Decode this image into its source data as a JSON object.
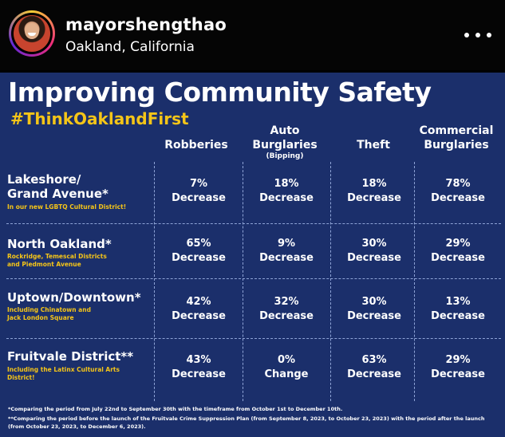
{
  "post": {
    "username": "mayorshengthao",
    "location": "Oakland, California"
  },
  "infographic": {
    "title": "Improving Community Safety",
    "hashtag": "#ThinkOaklandFirst",
    "columns": [
      {
        "line1": "Robberies",
        "line2": "",
        "sub": ""
      },
      {
        "line1": "Auto",
        "line2": "Burglaries",
        "sub": "(Bipping)"
      },
      {
        "line1": "Theft",
        "line2": "",
        "sub": ""
      },
      {
        "line1": "Commercial",
        "line2": "Burglaries",
        "sub": ""
      }
    ],
    "rows": [
      {
        "name_line1": "Lakeshore/",
        "name_line2": "Grand Avenue*",
        "sub_line1": "In our new LGBTQ Cultural District!",
        "sub_line2": "",
        "cells": [
          {
            "value": "7%",
            "label": "Decrease"
          },
          {
            "value": "18%",
            "label": "Decrease"
          },
          {
            "value": "18%",
            "label": "Decrease"
          },
          {
            "value": "78%",
            "label": "Decrease"
          }
        ]
      },
      {
        "name_line1": "North Oakland*",
        "name_line2": "",
        "sub_line1": "Rockridge, Temescal Districts",
        "sub_line2": "and Piedmont Avenue",
        "cells": [
          {
            "value": "65%",
            "label": "Decrease"
          },
          {
            "value": "9%",
            "label": "Decrease"
          },
          {
            "value": "30%",
            "label": "Decrease"
          },
          {
            "value": "29%",
            "label": "Decrease"
          }
        ]
      },
      {
        "name_line1": "Uptown/Downtown*",
        "name_line2": "",
        "sub_line1": "Including Chinatown and",
        "sub_line2": "Jack London Square",
        "cells": [
          {
            "value": "42%",
            "label": "Decrease"
          },
          {
            "value": "32%",
            "label": "Decrease"
          },
          {
            "value": "30%",
            "label": "Decrease"
          },
          {
            "value": "13%",
            "label": "Decrease"
          }
        ]
      },
      {
        "name_line1": "Fruitvale District**",
        "name_line2": "",
        "sub_line1": "Including the Latinx Cultural Arts",
        "sub_line2": "District!",
        "cells": [
          {
            "value": "43%",
            "label": "Decrease"
          },
          {
            "value": "0%",
            "label": "Change"
          },
          {
            "value": "63%",
            "label": "Decrease"
          },
          {
            "value": "29%",
            "label": "Decrease"
          }
        ]
      }
    ],
    "footnotes": [
      "*Comparing the period from July 22nd to September 30th with the timeframe from October 1st to December 10th.",
      "**Comparing the period before the launch of the Fruitvale Crime Suppression Plan (from September 8, 2023, to October 23, 2023) with the period after the launch",
      "(from October 23, 2023, to December 6, 2023)."
    ]
  },
  "colors": {
    "background": "#1b2f6b",
    "accent": "#f5c518",
    "text": "#ffffff"
  },
  "icons": {
    "more": "more-horizontal-icon",
    "avatar": "profile-avatar"
  }
}
